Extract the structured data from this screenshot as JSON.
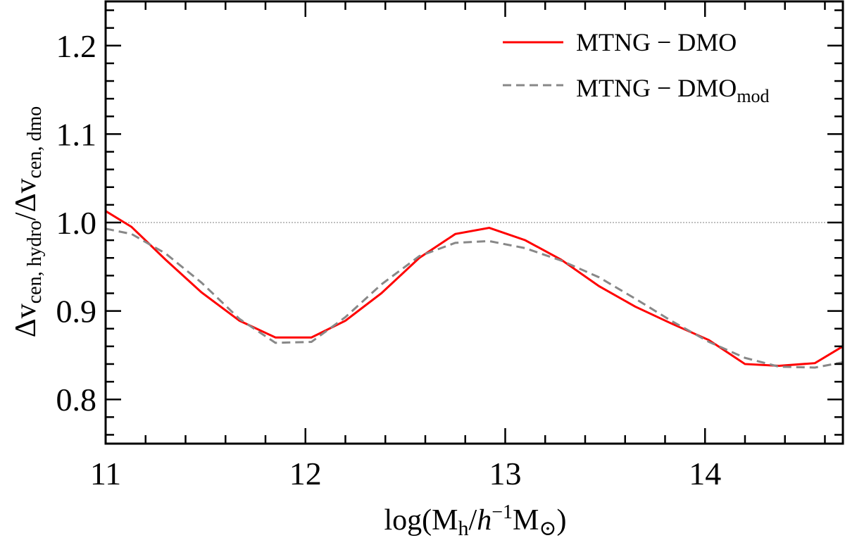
{
  "chart_data": {
    "type": "line",
    "title": "",
    "xlabel": {
      "pre": "log(M",
      "sub1": "h",
      "mid": "/",
      "italic": "h",
      "sup": "−1",
      "post": "M",
      "sub2": "⊙",
      "close": ")"
    },
    "ylabel": {
      "d1": "Δv",
      "s1": "cen, hydro",
      "slash": "/Δv",
      "s2": "cen, dmo"
    },
    "xlim": [
      11.0,
      14.69
    ],
    "ylim": [
      0.75,
      1.25
    ],
    "xticks": [
      11,
      12,
      13,
      14
    ],
    "xtick_labels": [
      "11",
      "12",
      "13",
      "14"
    ],
    "yticks": [
      0.8,
      0.9,
      1.0,
      1.1,
      1.2
    ],
    "ytick_labels": [
      "0.8",
      "0.9",
      "1.0",
      "1.1",
      "1.2"
    ],
    "grid": false,
    "reference_line": {
      "y": 1.0,
      "color": "#aaaaaa",
      "style": "dotted"
    },
    "legend_position": "top-right",
    "x": [
      11.0,
      11.13,
      11.3,
      11.48,
      11.67,
      11.85,
      12.03,
      12.2,
      12.38,
      12.57,
      12.75,
      12.92,
      13.1,
      13.28,
      13.47,
      13.65,
      13.83,
      14.02,
      14.2,
      14.37,
      14.55,
      14.69
    ],
    "series": [
      {
        "name": "MTNG − DMO",
        "name_main": "MTNG − DMO",
        "name_sub": "",
        "color": "#ff0000",
        "style": "solid",
        "values": [
          1.013,
          0.995,
          0.958,
          0.921,
          0.889,
          0.87,
          0.87,
          0.889,
          0.92,
          0.96,
          0.987,
          0.994,
          0.98,
          0.958,
          0.928,
          0.905,
          0.886,
          0.867,
          0.84,
          0.838,
          0.841,
          0.86
        ]
      },
      {
        "name": "MTNG − DMOmod",
        "name_main": "MTNG − DMO",
        "name_sub": "mod",
        "color": "#888888",
        "style": "dashed",
        "values": [
          0.993,
          0.987,
          0.965,
          0.932,
          0.891,
          0.864,
          0.865,
          0.893,
          0.93,
          0.962,
          0.977,
          0.979,
          0.971,
          0.957,
          0.938,
          0.914,
          0.889,
          0.865,
          0.847,
          0.837,
          0.836,
          0.842
        ]
      }
    ]
  }
}
